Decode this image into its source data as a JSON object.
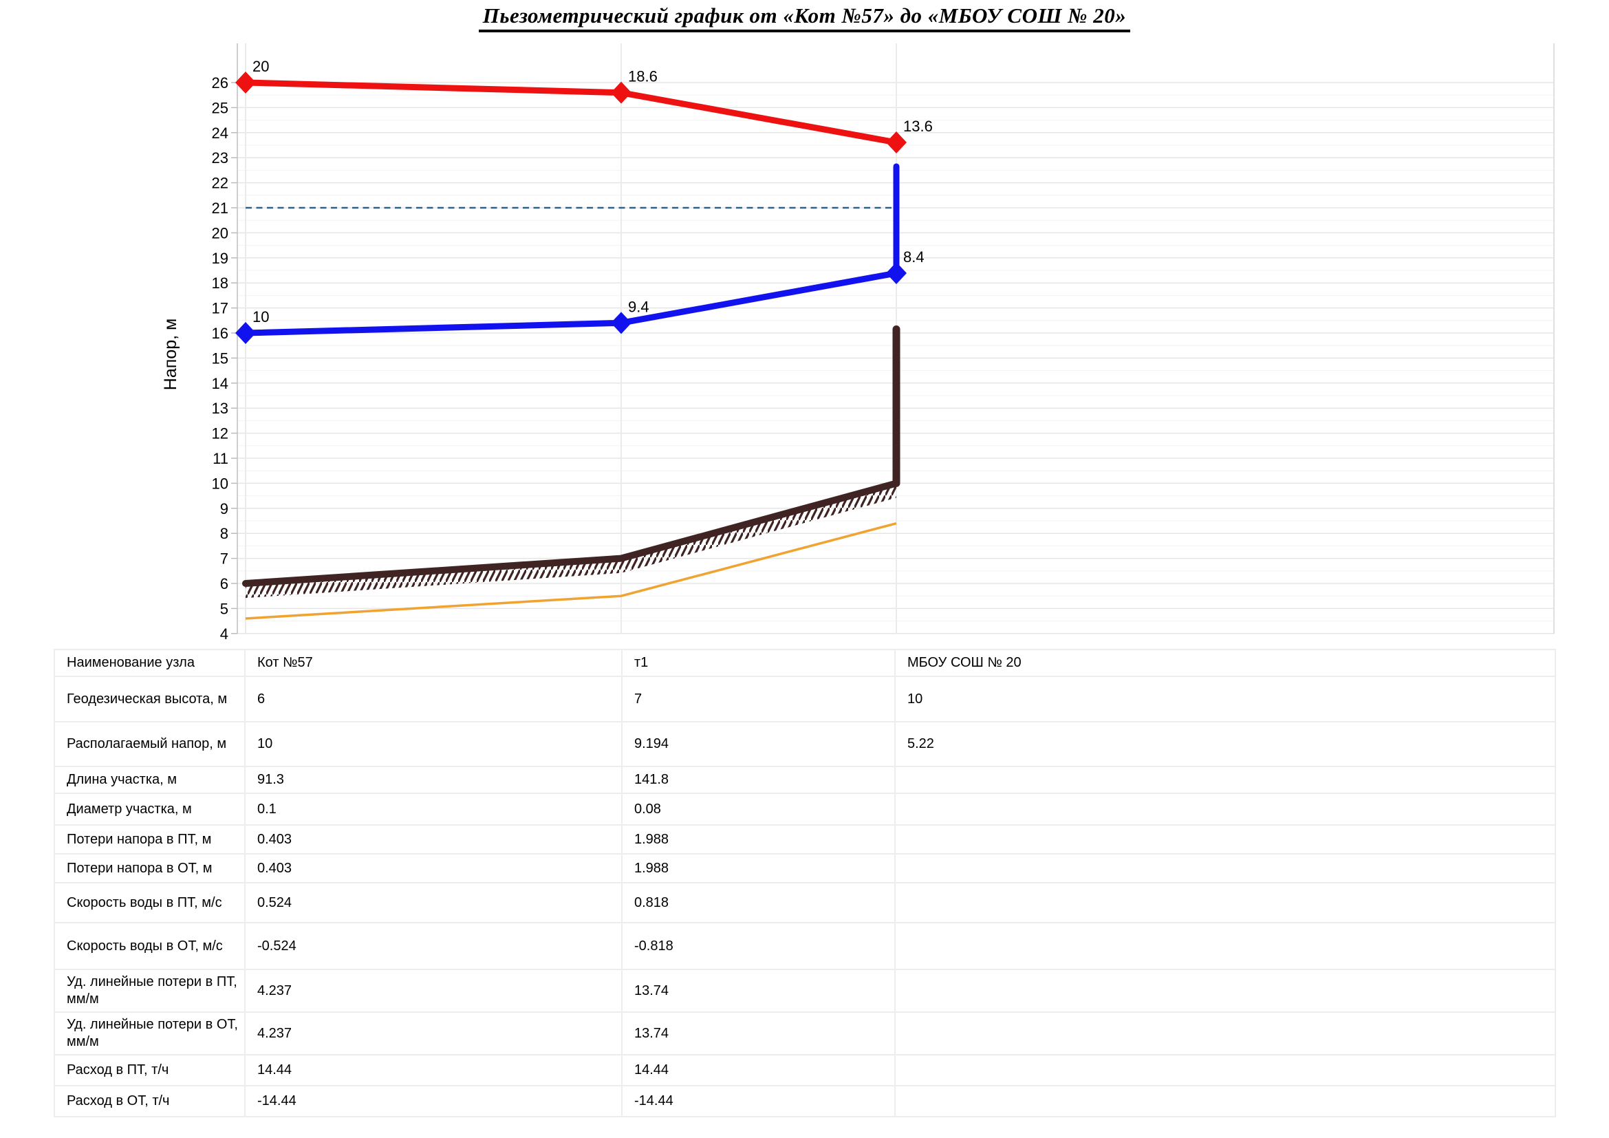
{
  "page_title": "Пьезометрический график от «Кот №57» до «МБОУ СОШ № 20»",
  "chart_data": {
    "type": "line",
    "title": "Пьезометрический график от «Кот №57» до «МБОУ СОШ № 20»",
    "ylabel": "Напор, м",
    "ylim": [
      4,
      26
    ],
    "y_tick_step": 1,
    "grid": "horizontal major + minor, vertical at nodes",
    "legend_position": "none",
    "categories": [
      "Кот №57",
      "т1",
      "МБОУ СОШ № 20"
    ],
    "series": [
      {
        "name": "supply-head",
        "color": "#ee1111",
        "values": [
          26,
          25.597,
          23.609
        ],
        "point_labels": [
          "20",
          "18.6",
          "13.6"
        ]
      },
      {
        "name": "return-head",
        "color": "#1212ee",
        "values": [
          16,
          16.403,
          18.391
        ],
        "point_labels": [
          "10",
          "9.4",
          "8.4"
        ]
      },
      {
        "name": "ground-profile",
        "color": "#402323",
        "values": [
          6,
          7,
          10
        ]
      },
      {
        "name": "pipe-axis",
        "color": "#f0a330",
        "values": [
          4.6,
          5.5,
          8.4
        ]
      }
    ],
    "annotations": {
      "dashed_level_value": 21,
      "dashed_level_color": "#2e6387",
      "consumer_riser": {
        "node_index": 2,
        "from": 18.391,
        "to": 22.65,
        "color": "#1212ee"
      },
      "building_bar": {
        "node_index": 2,
        "from": 10,
        "to": 16.15,
        "color": "#402323"
      },
      "ground_hatch_depth": 0.58
    }
  },
  "table": {
    "rows": [
      {
        "label": "Наименование узла",
        "values": [
          "Кот №57",
          "т1",
          "МБОУ СОШ № 20"
        ]
      },
      {
        "label": "Геодезическая высота, м",
        "values": [
          "6",
          "7",
          "10"
        ]
      },
      {
        "label": "Располагаемый напор, м",
        "values": [
          "10",
          "9.194",
          "5.22"
        ]
      },
      {
        "label": "Длина участка, м",
        "values": [
          "91.3",
          "141.8",
          ""
        ]
      },
      {
        "label": "Диаметр участка, м",
        "values": [
          "0.1",
          "0.08",
          ""
        ]
      },
      {
        "label": "Потери напора в ПТ, м",
        "values": [
          "0.403",
          "1.988",
          ""
        ]
      },
      {
        "label": "Потери напора в ОТ, м",
        "values": [
          "0.403",
          "1.988",
          ""
        ]
      },
      {
        "label": "Скорость воды в ПТ, м/с",
        "values": [
          "0.524",
          "0.818",
          ""
        ]
      },
      {
        "label": "Скорость воды в ОТ, м/с",
        "values": [
          "-0.524",
          "-0.818",
          ""
        ]
      },
      {
        "label": "Уд. линейные потери в ПТ, мм/м",
        "values": [
          "4.237",
          "13.74",
          ""
        ]
      },
      {
        "label": "Уд. линейные потери в ОТ, мм/м",
        "values": [
          "4.237",
          "13.74",
          ""
        ]
      },
      {
        "label": "Расход в ПТ, т/ч",
        "values": [
          "14.44",
          "14.44",
          ""
        ]
      },
      {
        "label": "Расход в ОТ, т/ч",
        "values": [
          "-14.44",
          "-14.44",
          ""
        ]
      }
    ]
  }
}
